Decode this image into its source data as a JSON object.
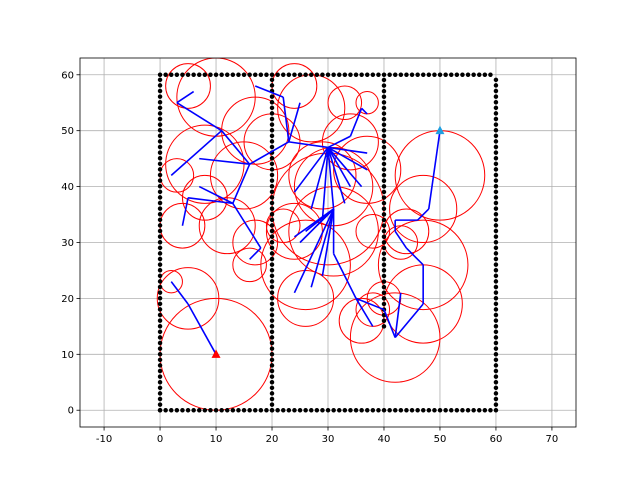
{
  "chart_data": {
    "type": "scatter",
    "xlim": [
      -14.3,
      74.3
    ],
    "ylim": [
      -3,
      63
    ],
    "xticks": [
      -10,
      0,
      10,
      20,
      30,
      40,
      50,
      60,
      70
    ],
    "yticks": [
      0,
      10,
      20,
      30,
      40,
      50,
      60
    ],
    "grid": true,
    "walls": {
      "color": "#000000",
      "segments": [
        {
          "x": [
            0,
            60
          ],
          "y": [
            0,
            0
          ]
        },
        {
          "x": [
            0,
            60
          ],
          "y": [
            60,
            60
          ]
        },
        {
          "x": [
            0,
            0
          ],
          "y": [
            0,
            60
          ]
        },
        {
          "x": [
            20,
            20
          ],
          "y": [
            0,
            60
          ]
        },
        {
          "x": [
            40,
            40
          ],
          "y": [
            15,
            60
          ]
        },
        {
          "x": [
            60,
            60
          ],
          "y": [
            0,
            60
          ]
        }
      ]
    },
    "circles": {
      "color": "#ff0000",
      "x": [
        10,
        5,
        2,
        47,
        42,
        47,
        44,
        43,
        47,
        50,
        26,
        26,
        24,
        31,
        30,
        31,
        29,
        27,
        15,
        8,
        10,
        5,
        3,
        8,
        4,
        12,
        16,
        17,
        17,
        24,
        33,
        37,
        38,
        36,
        40,
        38,
        34,
        37,
        22,
        20
      ],
      "y": [
        10,
        20,
        23,
        19,
        13,
        26,
        32,
        30,
        36,
        42,
        20,
        26,
        32,
        32,
        36,
        40,
        42,
        54,
        42,
        44,
        56,
        58,
        42,
        38,
        33,
        33,
        26,
        30,
        50,
        58,
        55,
        55,
        32,
        16,
        20,
        18,
        48,
        43,
        33,
        48
      ],
      "r": [
        10,
        5.5,
        2,
        7,
        8,
        8,
        4,
        3,
        6,
        8,
        5,
        8,
        5,
        8,
        10,
        7,
        6,
        6,
        6,
        7,
        7,
        4,
        3,
        4,
        4,
        5,
        3,
        4,
        6,
        4,
        3,
        2,
        3,
        4,
        3,
        3,
        5,
        6,
        3,
        5
      ]
    },
    "edges": {
      "color": "#0000ff",
      "segments": [
        {
          "x": [
            10,
            5
          ],
          "y": [
            10,
            19
          ]
        },
        {
          "x": [
            5,
            2
          ],
          "y": [
            19,
            23
          ]
        },
        {
          "x": [
            13,
            5
          ],
          "y": [
            37,
            38
          ]
        },
        {
          "x": [
            5,
            4
          ],
          "y": [
            38,
            33
          ]
        },
        {
          "x": [
            13,
            16
          ],
          "y": [
            37,
            44
          ]
        },
        {
          "x": [
            16,
            7
          ],
          "y": [
            44,
            45
          ]
        },
        {
          "x": [
            16,
            11
          ],
          "y": [
            44,
            50
          ]
        },
        {
          "x": [
            11,
            2
          ],
          "y": [
            50,
            42
          ]
        },
        {
          "x": [
            11,
            3
          ],
          "y": [
            50,
            55
          ]
        },
        {
          "x": [
            3,
            6
          ],
          "y": [
            55,
            57
          ]
        },
        {
          "x": [
            16,
            23
          ],
          "y": [
            44,
            48
          ]
        },
        {
          "x": [
            23,
            30
          ],
          "y": [
            48,
            47
          ]
        },
        {
          "x": [
            23,
            25
          ],
          "y": [
            48,
            55
          ]
        },
        {
          "x": [
            23,
            22
          ],
          "y": [
            48,
            56
          ]
        },
        {
          "x": [
            22,
            17
          ],
          "y": [
            56,
            58
          ]
        },
        {
          "x": [
            13,
            18
          ],
          "y": [
            37,
            29
          ]
        },
        {
          "x": [
            18,
            16
          ],
          "y": [
            29,
            27
          ]
        },
        {
          "x": [
            13,
            7
          ],
          "y": [
            37,
            40
          ]
        },
        {
          "x": [
            30,
            24
          ],
          "y": [
            47,
            39
          ]
        },
        {
          "x": [
            30,
            27
          ],
          "y": [
            47,
            36
          ]
        },
        {
          "x": [
            30,
            29
          ],
          "y": [
            47,
            34
          ]
        },
        {
          "x": [
            30,
            31
          ],
          "y": [
            47,
            36
          ]
        },
        {
          "x": [
            30,
            33
          ],
          "y": [
            47,
            37
          ]
        },
        {
          "x": [
            30,
            34
          ],
          "y": [
            47,
            40
          ]
        },
        {
          "x": [
            30,
            36
          ],
          "y": [
            47,
            40
          ]
        },
        {
          "x": [
            30,
            37
          ],
          "y": [
            47,
            43
          ]
        },
        {
          "x": [
            30,
            37
          ],
          "y": [
            47,
            46
          ]
        },
        {
          "x": [
            30,
            34
          ],
          "y": [
            47,
            49
          ]
        },
        {
          "x": [
            34,
            36
          ],
          "y": [
            49,
            54
          ]
        },
        {
          "x": [
            36,
            37
          ],
          "y": [
            54,
            53
          ]
        },
        {
          "x": [
            31,
            24
          ],
          "y": [
            36,
            31
          ]
        },
        {
          "x": [
            31,
            25
          ],
          "y": [
            36,
            30
          ]
        },
        {
          "x": [
            31,
            26
          ],
          "y": [
            36,
            32
          ]
        },
        {
          "x": [
            31,
            28
          ],
          "y": [
            36,
            33
          ]
        },
        {
          "x": [
            31,
            24
          ],
          "y": [
            36,
            21
          ]
        },
        {
          "x": [
            31,
            27
          ],
          "y": [
            36,
            22
          ]
        },
        {
          "x": [
            31,
            29
          ],
          "y": [
            36,
            24
          ]
        },
        {
          "x": [
            31,
            31
          ],
          "y": [
            36,
            28
          ]
        },
        {
          "x": [
            31,
            35
          ],
          "y": [
            28,
            20
          ]
        },
        {
          "x": [
            35,
            40
          ],
          "y": [
            20,
            18
          ]
        },
        {
          "x": [
            40,
            42
          ],
          "y": [
            18,
            13
          ]
        },
        {
          "x": [
            42,
            47
          ],
          "y": [
            13,
            19
          ]
        },
        {
          "x": [
            42,
            43
          ],
          "y": [
            13,
            21
          ]
        },
        {
          "x": [
            35,
            38
          ],
          "y": [
            20,
            15
          ]
        },
        {
          "x": [
            47,
            47
          ],
          "y": [
            19,
            26
          ]
        },
        {
          "x": [
            47,
            44
          ],
          "y": [
            26,
            29
          ]
        },
        {
          "x": [
            44,
            42
          ],
          "y": [
            29,
            32
          ]
        },
        {
          "x": [
            42,
            42
          ],
          "y": [
            32,
            34
          ]
        },
        {
          "x": [
            42,
            46
          ],
          "y": [
            34,
            34
          ]
        },
        {
          "x": [
            46,
            48
          ],
          "y": [
            34,
            36
          ]
        },
        {
          "x": [
            48,
            50
          ],
          "y": [
            36,
            50
          ]
        }
      ]
    },
    "start": {
      "x": 10,
      "y": 10,
      "color": "#ff0000"
    },
    "goal": {
      "x": 50,
      "y": 50,
      "color": "#1f9fe0"
    }
  }
}
